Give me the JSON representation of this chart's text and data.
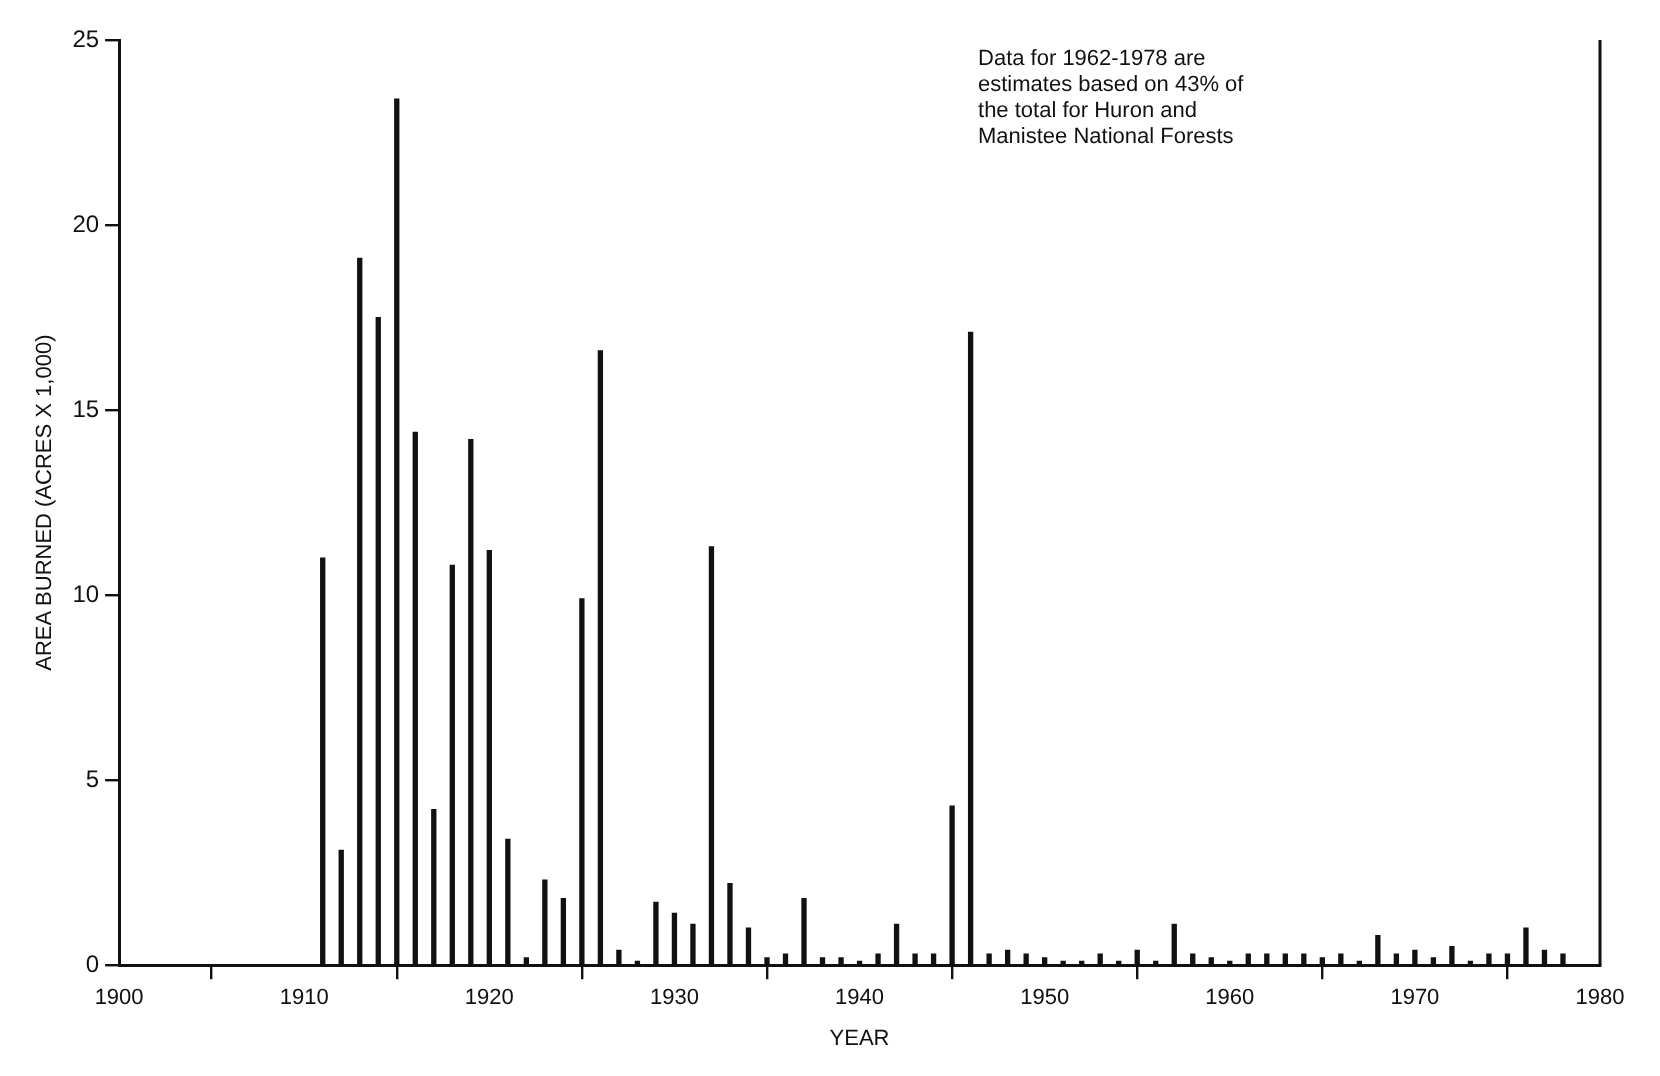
{
  "chart_data": {
    "type": "bar",
    "xlabel": "YEAR",
    "ylabel": "AREA BURNED (ACRES X 1,000)",
    "annotations": [
      "Data for 1962-1978 are estimates based on 43% of the total for Huron and Manistee National Forests"
    ],
    "x": [
      1911,
      1912,
      1913,
      1914,
      1915,
      1916,
      1917,
      1918,
      1919,
      1920,
      1921,
      1922,
      1923,
      1924,
      1925,
      1926,
      1927,
      1928,
      1929,
      1930,
      1931,
      1932,
      1933,
      1934,
      1935,
      1936,
      1937,
      1938,
      1939,
      1940,
      1941,
      1942,
      1943,
      1944,
      1945,
      1946,
      1947,
      1948,
      1949,
      1950,
      1951,
      1952,
      1953,
      1954,
      1955,
      1956,
      1957,
      1958,
      1959,
      1960,
      1961,
      1962,
      1963,
      1964,
      1965,
      1966,
      1967,
      1968,
      1969,
      1970,
      1971,
      1972,
      1973,
      1974,
      1975,
      1976,
      1977,
      1978
    ],
    "values": [
      11.0,
      3.1,
      19.1,
      17.5,
      23.4,
      14.4,
      4.2,
      10.8,
      14.2,
      11.2,
      3.4,
      0.2,
      2.3,
      1.8,
      9.9,
      16.6,
      0.4,
      0.1,
      1.7,
      1.4,
      1.1,
      11.3,
      2.2,
      1.0,
      0.2,
      0.3,
      1.8,
      0.2,
      0.2,
      0.1,
      0.3,
      1.1,
      0.3,
      0.3,
      4.3,
      17.1,
      0.3,
      0.4,
      0.3,
      0.2,
      0.1,
      0.1,
      0.3,
      0.1,
      0.4,
      0.1,
      1.1,
      0.3,
      0.2,
      0.1,
      0.3,
      0.3,
      0.3,
      0.3,
      0.2,
      0.3,
      0.1,
      0.8,
      0.3,
      0.4,
      0.2,
      0.5,
      0.1,
      0.3,
      0.3,
      1.0,
      0.4,
      0.3
    ],
    "color": "#111111",
    "xlim": [
      1900,
      1980
    ],
    "xticks": [
      1900,
      1910,
      1920,
      1930,
      1940,
      1950,
      1960,
      1970,
      1980
    ],
    "ylim": [
      0,
      25
    ],
    "yticks": [
      0,
      5,
      10,
      15,
      20,
      25
    ],
    "grid": false,
    "legend": false
  }
}
